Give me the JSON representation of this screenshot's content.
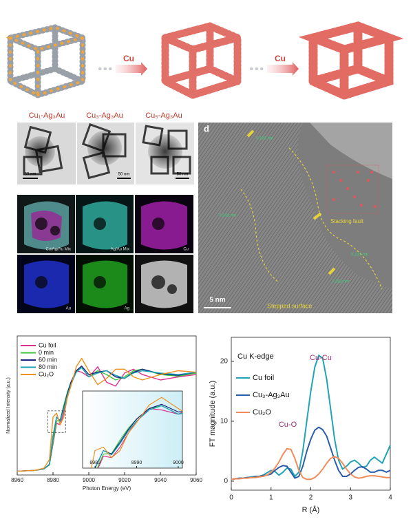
{
  "schematic": {
    "arrow_labels": [
      "Cu",
      "Cu"
    ]
  },
  "tem": {
    "labels": [
      "Cu₁-Ag₃Au",
      "Cu₃-Ag₃Au",
      "Cu₅-Ag₃Au"
    ],
    "scale_bars": [
      "50 nm",
      "50 nm",
      "50 nm"
    ]
  },
  "maps": {
    "labels": [
      "Cu/Ag/Au Mix",
      "Ag/Au Mix",
      "Cu",
      "Au",
      "Ag"
    ]
  },
  "hrtem": {
    "panel_label": "d",
    "annotations": [
      "0.182 nm",
      "0.141 nm",
      "Stacking fault",
      "0.237 nm",
      "0.262 nm",
      "Stepped surface"
    ],
    "scale_bar": "5 nm"
  },
  "chart_data": [
    {
      "type": "line",
      "x_label": "Photon Energy (eV)",
      "y_label": "Normalized Intensity (a.u.)",
      "x": [
        8960,
        8970,
        8975,
        8978,
        8980,
        8982,
        8984,
        8986,
        8988,
        8990,
        8993,
        8996,
        9000,
        9005,
        9010,
        9015,
        9020,
        9025,
        9030,
        9040,
        9050,
        9060
      ],
      "series": [
        {
          "name": "Cu foil",
          "color": "#e0308f",
          "values": [
            0.0,
            0.01,
            0.03,
            0.08,
            0.35,
            0.62,
            0.6,
            0.75,
            0.95,
            1.12,
            1.3,
            1.28,
            1.22,
            1.35,
            1.15,
            1.1,
            1.27,
            1.32,
            1.25,
            1.18,
            1.22,
            1.25
          ]
        },
        {
          "name": "0 min",
          "color": "#3cc43c",
          "values": [
            0.0,
            0.01,
            0.03,
            0.08,
            0.38,
            0.65,
            0.66,
            0.85,
            1.02,
            1.15,
            1.3,
            1.34,
            1.22,
            1.3,
            1.25,
            1.18,
            1.22,
            1.3,
            1.32,
            1.25,
            1.23,
            1.27
          ]
        },
        {
          "name": "60 min",
          "color": "#1a237e",
          "values": [
            0.0,
            0.01,
            0.03,
            0.09,
            0.45,
            0.7,
            0.65,
            0.82,
            1.0,
            1.15,
            1.3,
            1.36,
            1.25,
            1.28,
            1.3,
            1.22,
            1.2,
            1.28,
            1.32,
            1.26,
            1.24,
            1.28
          ]
        },
        {
          "name": "80 min",
          "color": "#17a2b8",
          "values": [
            0.0,
            0.01,
            0.03,
            0.09,
            0.46,
            0.7,
            0.64,
            0.8,
            0.98,
            1.12,
            1.28,
            1.34,
            1.22,
            1.27,
            1.3,
            1.24,
            1.2,
            1.27,
            1.3,
            1.27,
            1.25,
            1.28
          ]
        },
        {
          "name": "Cu₂O",
          "color": "#f0901e",
          "values": [
            0.0,
            0.01,
            0.04,
            0.15,
            0.7,
            0.75,
            0.6,
            0.7,
            0.95,
            1.1,
            1.35,
            1.46,
            1.3,
            1.12,
            1.2,
            1.32,
            1.32,
            1.22,
            1.18,
            1.25,
            1.3,
            1.28
          ]
        }
      ],
      "xlim": [
        8960,
        9060
      ],
      "xticks": [
        8960,
        8980,
        9000,
        9020,
        9040,
        9060
      ],
      "ylim": [
        -0.05,
        1.75
      ],
      "legend": "upper left",
      "inset": {
        "xlim": [
          8977,
          9001
        ],
        "xticks": [
          8980,
          8990,
          9000
        ],
        "ylim": [
          0.45,
          1.55
        ]
      }
    },
    {
      "type": "line",
      "x_label": "R (Å)",
      "y_label": "FT magnitude (a.u.)",
      "annotations": [
        "Cu K-edge",
        "Cu-Cu",
        "Cu-O"
      ],
      "x": [
        0,
        0.1,
        0.2,
        0.3,
        0.4,
        0.5,
        0.6,
        0.7,
        0.8,
        0.9,
        1,
        1.1,
        1.2,
        1.3,
        1.4,
        1.5,
        1.6,
        1.7,
        1.8,
        1.9,
        2,
        2.1,
        2.2,
        2.3,
        2.4,
        2.5,
        2.6,
        2.7,
        2.8,
        2.9,
        3,
        3.1,
        3.2,
        3.3,
        3.4,
        3.5,
        3.6,
        3.7,
        3.8,
        3.9,
        4
      ],
      "series": [
        {
          "name": "Cu foil",
          "color": "#1fa3b5",
          "values": [
            0.3,
            0.4,
            0.5,
            0.5,
            0.6,
            0.7,
            0.8,
            0.8,
            1.0,
            1.4,
            1.8,
            1.6,
            1.0,
            1.5,
            2.2,
            2.0,
            0.8,
            1.5,
            5,
            10,
            15,
            19,
            21,
            20.5,
            17,
            12,
            7,
            3.5,
            2,
            2.5,
            3.2,
            3.5,
            3.0,
            2.3,
            2.5,
            3.5,
            4,
            3.5,
            3,
            4.5,
            6
          ]
        },
        {
          "name": "Cu₃-Ag₃Au",
          "color": "#2a5ea8",
          "values": [
            0.3,
            0.4,
            0.5,
            0.5,
            0.6,
            0.6,
            0.7,
            0.8,
            0.9,
            1.0,
            1.2,
            1.8,
            2.3,
            2.6,
            2.5,
            1.5,
            0.5,
            0.8,
            2.5,
            5,
            7,
            8.5,
            9,
            8.6,
            7.5,
            5.5,
            3.5,
            1.8,
            0.8,
            0.8,
            1.2,
            1.8,
            2.3,
            2.4,
            2.0,
            1.5,
            1.5,
            1.8,
            1.8,
            1.5,
            1.8
          ]
        },
        {
          "name": "Cu₂O",
          "color": "#f28b5a",
          "values": [
            0.3,
            0.4,
            0.4,
            0.5,
            0.5,
            0.6,
            0.6,
            0.7,
            0.8,
            1.0,
            1.5,
            2.2,
            3.2,
            4.5,
            5.4,
            5.3,
            3.8,
            1.8,
            0.6,
            0.3,
            0.3,
            0.6,
            1.2,
            2.0,
            3.0,
            3.8,
            4.1,
            3.8,
            3.0,
            2.0,
            1.2,
            0.7,
            0.5,
            0.6,
            0.8,
            0.9,
            0.9,
            0.8,
            0.7,
            0.6,
            0.6
          ]
        }
      ],
      "xlim": [
        0,
        4
      ],
      "xticks": [
        0,
        1,
        2,
        3,
        4
      ],
      "ylim": [
        -1.5,
        24
      ],
      "yticks": [
        0,
        10,
        20
      ],
      "legend": "upper left"
    }
  ]
}
